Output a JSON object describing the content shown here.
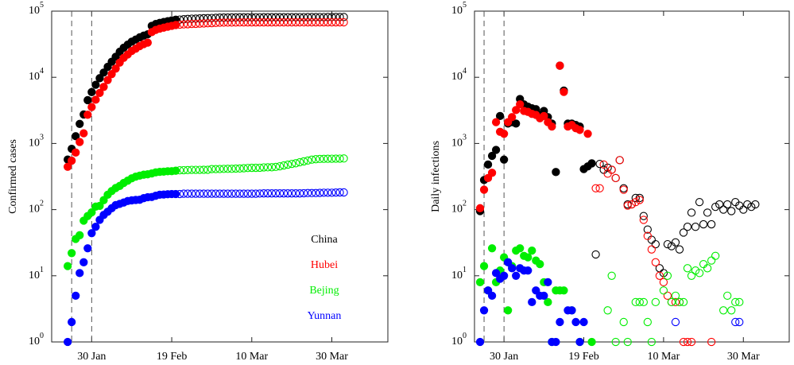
{
  "chart_data": [
    {
      "type": "scatter",
      "ylabel": "Confirmed cases",
      "log_y": true,
      "xlim": [
        20,
        104
      ],
      "ylim": [
        1,
        100000
      ],
      "xticks": [
        {
          "value": 30,
          "label": "30 Jan"
        },
        {
          "value": 50,
          "label": "19 Feb"
        },
        {
          "value": 70,
          "label": "10 Mar"
        },
        {
          "value": 90,
          "label": "30 Mar"
        }
      ],
      "yticks": [
        {
          "value": 1,
          "label": "10",
          "exponent": "0"
        },
        {
          "value": 10,
          "label": "10",
          "exponent": "1"
        },
        {
          "value": 100,
          "label": "10",
          "exponent": "2"
        },
        {
          "value": 1000,
          "label": "10",
          "exponent": "3"
        },
        {
          "value": 10000,
          "label": "10",
          "exponent": "4"
        },
        {
          "value": 100000,
          "label": "10",
          "exponent": "5"
        }
      ],
      "reference_lines": [
        25,
        30
      ],
      "solid_markers_until": 51,
      "legend": "lower right",
      "x": [
        24,
        25,
        26,
        27,
        28,
        29,
        30,
        31,
        32,
        33,
        34,
        35,
        36,
        37,
        38,
        39,
        40,
        41,
        42,
        43,
        44,
        45,
        46,
        47,
        48,
        49,
        50,
        51,
        52,
        53,
        54,
        55,
        56,
        57,
        58,
        59,
        60,
        61,
        62,
        63,
        64,
        65,
        66,
        67,
        68,
        69,
        70,
        71,
        72,
        73,
        74,
        75,
        76,
        77,
        78,
        79,
        80,
        81,
        82,
        83,
        84,
        85,
        86,
        87,
        88,
        89,
        90,
        91,
        92,
        93
      ],
      "series": [
        {
          "name": "China",
          "color": "#000000",
          "values": [
            571,
            830,
            1287,
            1975,
            2744,
            4515,
            5974,
            7711,
            9692,
            11791,
            14380,
            17205,
            20438,
            24324,
            28018,
            31161,
            34546,
            37198,
            40171,
            42638,
            44653,
            59804,
            63851,
            66492,
            68500,
            70548,
            72436,
            74185,
            74576,
            75465,
            76288,
            76936,
            77150,
            77658,
            78064,
            78497,
            78824,
            79251,
            79824,
            80026,
            80151,
            80270,
            80409,
            80552,
            80651,
            80695,
            80735,
            80754,
            80778,
            80793,
            80813,
            80824,
            80844,
            80860,
            80881,
            80894,
            80928,
            80967,
            81008,
            81054,
            81093,
            81171,
            81218,
            81285,
            81340,
            81394,
            81439,
            81470,
            81518,
            81554
          ]
        },
        {
          "name": "Hubei",
          "color": "#ff0000",
          "values": [
            444,
            549,
            729,
            1052,
            1423,
            2714,
            3554,
            4586,
            5806,
            7153,
            9074,
            11177,
            13522,
            16678,
            19665,
            22112,
            24953,
            27100,
            29631,
            31728,
            33366,
            48206,
            51986,
            54406,
            56249,
            58182,
            59989,
            61682,
            62457,
            63088,
            63454,
            64084,
            64287,
            64786,
            65187,
            65596,
            65914,
            66337,
            66907,
            67103,
            67217,
            67332,
            67466,
            67592,
            67666,
            67707,
            67743,
            67760,
            67773,
            67781,
            67786,
            67790,
            67794,
            67798,
            67799,
            67800,
            67800,
            67801,
            67801,
            67801,
            67801,
            67801,
            67802,
            67802,
            67802,
            67803,
            67803,
            67803,
            67803,
            67803
          ]
        },
        {
          "name": "Bejing",
          "color": "#00ee00",
          "values": [
            14,
            22,
            36,
            41,
            68,
            80,
            91,
            111,
            114,
            139,
            168,
            191,
            212,
            228,
            253,
            274,
            297,
            315,
            326,
            337,
            342,
            352,
            366,
            372,
            375,
            380,
            381,
            387,
            393,
            395,
            396,
            399,
            399,
            399,
            400,
            400,
            410,
            410,
            411,
            413,
            414,
            414,
            417,
            418,
            422,
            426,
            428,
            428,
            429,
            435,
            436,
            437,
            442,
            452,
            465,
            478,
            491,
            502,
            520,
            536,
            552,
            569,
            578,
            583,
            585,
            587,
            588,
            589,
            590,
            593
          ]
        },
        {
          "name": "Yunnan",
          "color": "#0000ff",
          "values": [
            1,
            2,
            5,
            11,
            16,
            26,
            44,
            55,
            70,
            83,
            93,
            105,
            117,
            122,
            128,
            135,
            138,
            140,
            141,
            149,
            154,
            155,
            162,
            168,
            169,
            171,
            172,
            172,
            172,
            174,
            174,
            174,
            174,
            174,
            174,
            174,
            174,
            174,
            174,
            174,
            174,
            174,
            174,
            174,
            174,
            174,
            174,
            174,
            175,
            176,
            176,
            176,
            176,
            176,
            176,
            176,
            176,
            176,
            176,
            177,
            178,
            178,
            178,
            179,
            180,
            180,
            180,
            181,
            182,
            182
          ]
        }
      ]
    },
    {
      "type": "scatter",
      "ylabel": "Daily infections",
      "log_y": true,
      "xlim": [
        22.6,
        101.5
      ],
      "ylim": [
        1,
        100000
      ],
      "xticks": [
        {
          "value": 30,
          "label": "30 Jan"
        },
        {
          "value": 50,
          "label": "19 Feb"
        },
        {
          "value": 70,
          "label": "10 Mar"
        },
        {
          "value": 90,
          "label": "30 Mar"
        }
      ],
      "yticks": [
        {
          "value": 1,
          "label": "10",
          "exponent": "0"
        },
        {
          "value": 10,
          "label": "10",
          "exponent": "1"
        },
        {
          "value": 100,
          "label": "10",
          "exponent": "2"
        },
        {
          "value": 1000,
          "label": "10",
          "exponent": "3"
        },
        {
          "value": 10000,
          "label": "10",
          "exponent": "4"
        },
        {
          "value": 100000,
          "label": "10",
          "exponent": "5"
        }
      ],
      "reference_lines": [
        25,
        30
      ],
      "solid_markers_until": 52,
      "x": [
        24,
        25,
        26,
        27,
        28,
        29,
        30,
        31,
        32,
        33,
        34,
        35,
        36,
        37,
        38,
        39,
        40,
        41,
        42,
        43,
        44,
        45,
        46,
        47,
        48,
        49,
        50,
        51,
        52,
        53,
        54,
        55,
        56,
        57,
        58,
        59,
        60,
        61,
        62,
        63,
        64,
        65,
        66,
        67,
        68,
        69,
        70,
        71,
        72,
        73,
        74,
        75,
        76,
        77,
        78,
        79,
        80,
        81,
        82,
        83,
        84,
        85,
        86,
        87,
        88,
        89,
        90,
        91,
        92,
        93
      ],
      "series": [
        {
          "name": "China",
          "color": "#000000",
          "values": [
            95,
            280,
            480,
            650,
            800,
            2600,
            570,
            2000,
            2100,
            2000,
            4700,
            3900,
            3600,
            3400,
            3300,
            2700,
            3100,
            2500,
            2000,
            370,
            15000,
            6300,
            2000,
            2000,
            1900,
            1800,
            410,
            450,
            500,
            21,
            490,
            400,
            430,
            400,
            300,
            560,
            210,
            120,
            120,
            150,
            150,
            80,
            50,
            35,
            30,
            13,
            11,
            30,
            28,
            32,
            25,
            45,
            55,
            90,
            55,
            130,
            60,
            90,
            60,
            110,
            120,
            100,
            120,
            95,
            130,
            115,
            100,
            120,
            110,
            120
          ]
        },
        {
          "name": "Hubei",
          "color": "#ff0000",
          "values": [
            105,
            200,
            300,
            360,
            2100,
            1500,
            1400,
            2100,
            2500,
            3200,
            3900,
            3100,
            3000,
            2800,
            2700,
            2400,
            2600,
            2100,
            1800,
            null,
            15000,
            6000,
            1800,
            1900,
            1700,
            1600,
            null,
            1400,
            null,
            210,
            210,
            480,
            350,
            400,
            300,
            560,
            200,
            115,
            120,
            130,
            140,
            70,
            40,
            25,
            16,
            10,
            8,
            5,
            4,
            4,
            4,
            1,
            1,
            1,
            null,
            null,
            null,
            null,
            1,
            null,
            null,
            null,
            null,
            null,
            null,
            null,
            null,
            null,
            null,
            null
          ]
        },
        {
          "name": "Bejing",
          "color": "#00ee00",
          "values": [
            8,
            14,
            6,
            26,
            8,
            12,
            19,
            3,
            14,
            24,
            26,
            20,
            19,
            24,
            17,
            15,
            8,
            4,
            1,
            6,
            6,
            6,
            null,
            3,
            null,
            1,
            null,
            null,
            1,
            null,
            null,
            null,
            3,
            10,
            1,
            null,
            2,
            1,
            null,
            4,
            4,
            4,
            2,
            1,
            4,
            null,
            6,
            10,
            4,
            5,
            4,
            4,
            13,
            10,
            12,
            11,
            15,
            13,
            17,
            20,
            null,
            3,
            5,
            3,
            4,
            4,
            null,
            null,
            null,
            null
          ]
        },
        {
          "name": "Yunnan",
          "color": "#0000ff",
          "values": [
            1,
            3,
            6,
            5,
            11,
            9,
            10,
            16,
            13,
            10,
            13,
            12,
            12,
            4,
            6,
            5,
            5,
            8,
            1,
            1,
            2,
            null,
            3,
            3,
            2,
            1,
            2,
            null,
            null,
            null,
            null,
            null,
            null,
            null,
            null,
            null,
            null,
            null,
            null,
            null,
            null,
            null,
            null,
            null,
            null,
            null,
            null,
            null,
            null,
            2,
            null,
            null,
            null,
            null,
            null,
            null,
            null,
            null,
            null,
            null,
            null,
            null,
            null,
            null,
            2,
            2,
            null,
            null,
            null,
            null
          ]
        }
      ]
    }
  ]
}
